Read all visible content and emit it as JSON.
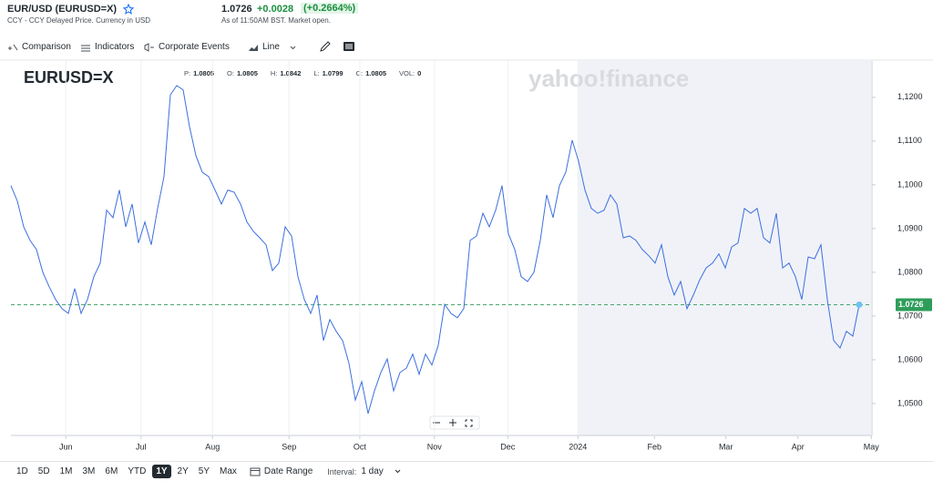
{
  "header": {
    "title": "EUR/USD (EURUSD=X)",
    "subtitle": "CCY - CCY Delayed Price. Currency in USD",
    "price": "1.0726",
    "change": "+0.0028",
    "change_percent": "(+0.2664%)",
    "timestamp": "As of 11:50AM BST. Market open."
  },
  "toolbar": {
    "comparison": "Comparison",
    "indicators": "Indicators",
    "corporate_events": "Corporate Events",
    "chart_style": "Line"
  },
  "chart_data": {
    "type": "line",
    "title": "EURUSD=X",
    "watermark": "yahoo!finance",
    "info": [
      {
        "label": "P:",
        "value": "1.0805"
      },
      {
        "label": "O:",
        "value": "1.0805"
      },
      {
        "label": "H:",
        "value": "1.0842"
      },
      {
        "label": "L:",
        "value": "1.0799"
      },
      {
        "label": "C:",
        "value": "1.0805"
      },
      {
        "label": "VOL:",
        "value": "0"
      }
    ],
    "color": "#3d6fe0",
    "values": [
      1.0998,
      1.0963,
      1.0904,
      1.0873,
      1.0852,
      1.08,
      1.0767,
      1.0738,
      1.0717,
      1.0706,
      1.0763,
      1.0706,
      1.0738,
      1.079,
      1.0821,
      1.0942,
      1.0925,
      1.0988,
      1.0904,
      1.0956,
      1.0867,
      1.0915,
      1.0863,
      1.0946,
      1.1019,
      1.1206,
      1.1227,
      1.1217,
      1.1133,
      1.1067,
      1.1029,
      1.1019,
      1.0988,
      1.0956,
      1.0988,
      1.0983,
      1.0956,
      1.0915,
      1.0894,
      1.0879,
      1.0863,
      1.0804,
      1.0821,
      1.0904,
      1.0883,
      1.079,
      1.0738,
      1.0706,
      1.0748,
      1.0644,
      1.0692,
      1.0665,
      1.0644,
      1.0592,
      1.0508,
      1.055,
      1.0477,
      1.0529,
      1.0571,
      1.0602,
      1.0529,
      1.0571,
      1.0581,
      1.0613,
      1.0567,
      1.0613,
      1.0588,
      1.0633,
      1.0727,
      1.0706,
      1.0696,
      1.0717,
      1.0873,
      1.0883,
      1.0935,
      1.0904,
      1.0942,
      1.0998,
      1.0888,
      1.0852,
      1.079,
      1.0779,
      1.08,
      1.0873,
      1.0977,
      1.0925,
      1.0998,
      1.1029,
      1.1102,
      1.1054,
      1.0988,
      1.0946,
      1.0935,
      1.0942,
      1.0977,
      1.0956,
      1.0879,
      1.0883,
      1.0873,
      1.0852,
      1.0838,
      1.0821,
      1.0863,
      1.079,
      1.0748,
      1.0779,
      1.0717,
      1.0748,
      1.0783,
      1.081,
      1.0821,
      1.0842,
      1.081,
      1.0858,
      1.0867,
      1.0946,
      1.0935,
      1.0946,
      1.0879,
      1.0867,
      1.0935,
      1.081,
      1.0821,
      1.079,
      1.0738,
      1.0835,
      1.0831,
      1.0863,
      1.0738,
      1.0644,
      1.0627,
      1.0665,
      1.0654,
      1.0726
    ],
    "current_price": 1.0726,
    "current_price_color": "#2e9d5a",
    "xlim": [
      0,
      135
    ],
    "xticks": [
      {
        "value": 8.6,
        "label": "Jun"
      },
      {
        "value": 20.4,
        "label": "Jul"
      },
      {
        "value": 31.6,
        "label": "Aug"
      },
      {
        "value": 43.6,
        "label": "Sep"
      },
      {
        "value": 54.7,
        "label": "Oct"
      },
      {
        "value": 66.4,
        "label": "Nov"
      },
      {
        "value": 77.9,
        "label": "Dec"
      },
      {
        "value": 88.9,
        "label": "2024"
      },
      {
        "value": 100.9,
        "label": "Feb"
      },
      {
        "value": 112.1,
        "label": "Mar"
      },
      {
        "value": 123.4,
        "label": "Apr"
      },
      {
        "value": 134.9,
        "label": "May"
      }
    ],
    "ylim": [
      1.0427,
      1.1283
    ],
    "yticks": [
      {
        "value": 1.05,
        "label": "1,0500"
      },
      {
        "value": 1.06,
        "label": "1,0600"
      },
      {
        "value": 1.07,
        "label": "1,0700"
      },
      {
        "value": 1.08,
        "label": "1,0800"
      },
      {
        "value": 1.09,
        "label": "1,0900"
      },
      {
        "value": 1.1,
        "label": "1,1000"
      },
      {
        "value": 1.11,
        "label": "1,1100"
      },
      {
        "value": 1.12,
        "label": "1,1200"
      }
    ],
    "grid": true
  },
  "ranges": [
    "1D",
    "5D",
    "1M",
    "3M",
    "6M",
    "YTD",
    "1Y",
    "2Y",
    "5Y",
    "Max"
  ],
  "date_range": "Date Range",
  "interval_label": "Interval:",
  "interval": "1 day"
}
